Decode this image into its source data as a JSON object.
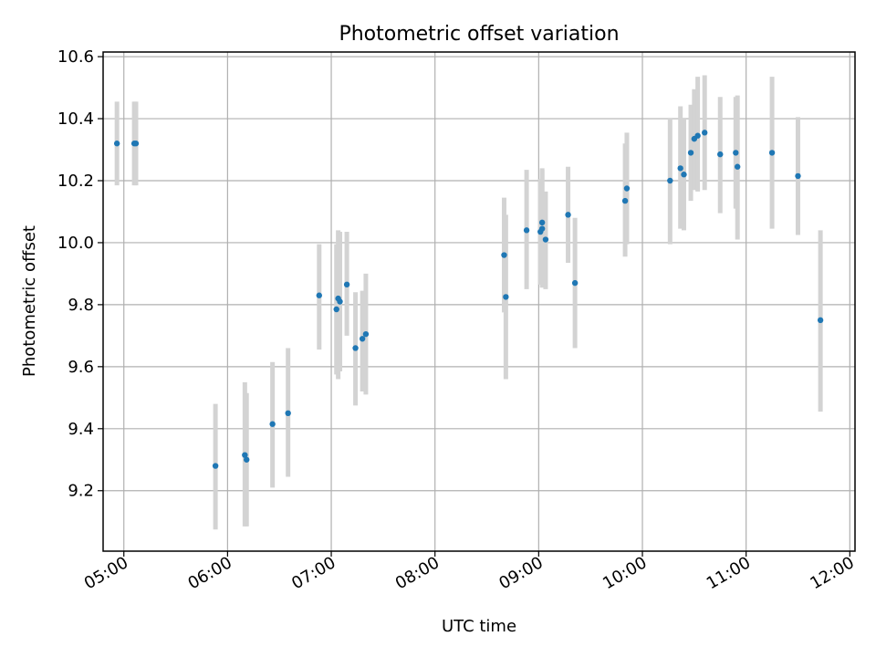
{
  "chart_data": {
    "type": "scatter",
    "title": "Photometric offset variation",
    "xlabel": "UTC time",
    "ylabel": "Photometric offset",
    "xlim": [
      "04:48",
      "12:03"
    ],
    "ylim": [
      9.005,
      10.615
    ],
    "x_ticks": [
      "05:00",
      "06:00",
      "07:00",
      "08:00",
      "09:00",
      "10:00",
      "11:00",
      "12:00"
    ],
    "y_ticks": [
      "9.2",
      "9.4",
      "9.6",
      "9.8",
      "10.0",
      "10.2",
      "10.4",
      "10.6"
    ],
    "grid": true,
    "colors": {
      "point": "#1f77b4",
      "errorbar": "#d3d3d3",
      "grid": "#b0b0b0"
    },
    "points": [
      {
        "x": "04:56",
        "y": 10.32,
        "lo": 10.185,
        "hi": 10.455
      },
      {
        "x": "05:06",
        "y": 10.32,
        "lo": 10.185,
        "hi": 10.455
      },
      {
        "x": "05:07",
        "y": 10.32,
        "lo": 10.185,
        "hi": 10.455
      },
      {
        "x": "05:53",
        "y": 9.28,
        "lo": 9.075,
        "hi": 9.48
      },
      {
        "x": "06:10",
        "y": 9.315,
        "lo": 9.085,
        "hi": 9.55
      },
      {
        "x": "06:11",
        "y": 9.3,
        "lo": 9.085,
        "hi": 9.515
      },
      {
        "x": "06:26",
        "y": 9.415,
        "lo": 9.21,
        "hi": 9.615
      },
      {
        "x": "06:35",
        "y": 9.45,
        "lo": 9.245,
        "hi": 9.66
      },
      {
        "x": "06:53",
        "y": 9.83,
        "lo": 9.655,
        "hi": 9.995
      },
      {
        "x": "07:03",
        "y": 9.785,
        "lo": 9.575,
        "hi": 9.995
      },
      {
        "x": "07:04",
        "y": 9.82,
        "lo": 9.56,
        "hi": 10.04
      },
      {
        "x": "07:05",
        "y": 9.81,
        "lo": 9.585,
        "hi": 10.035
      },
      {
        "x": "07:09",
        "y": 9.865,
        "lo": 9.7,
        "hi": 10.035
      },
      {
        "x": "07:14",
        "y": 9.66,
        "lo": 9.475,
        "hi": 9.84
      },
      {
        "x": "07:18",
        "y": 9.69,
        "lo": 9.52,
        "hi": 9.845
      },
      {
        "x": "07:20",
        "y": 9.705,
        "lo": 9.51,
        "hi": 9.9
      },
      {
        "x": "08:40",
        "y": 9.96,
        "lo": 9.775,
        "hi": 10.145
      },
      {
        "x": "08:41",
        "y": 9.825,
        "lo": 9.56,
        "hi": 10.09
      },
      {
        "x": "08:53",
        "y": 10.04,
        "lo": 9.85,
        "hi": 10.235
      },
      {
        "x": "09:01",
        "y": 10.035,
        "lo": 9.865,
        "hi": 10.205
      },
      {
        "x": "09:02",
        "y": 10.045,
        "lo": 9.855,
        "hi": 10.235
      },
      {
        "x": "09:02",
        "y": 10.065,
        "lo": 9.895,
        "hi": 10.24
      },
      {
        "x": "09:04",
        "y": 10.01,
        "lo": 9.85,
        "hi": 10.165
      },
      {
        "x": "09:17",
        "y": 10.09,
        "lo": 9.935,
        "hi": 10.245
      },
      {
        "x": "09:21",
        "y": 9.87,
        "lo": 9.66,
        "hi": 10.08
      },
      {
        "x": "09:50",
        "y": 10.135,
        "lo": 9.955,
        "hi": 10.32
      },
      {
        "x": "09:51",
        "y": 10.175,
        "lo": 9.995,
        "hi": 10.355
      },
      {
        "x": "10:16",
        "y": 10.2,
        "lo": 9.995,
        "hi": 10.4
      },
      {
        "x": "10:22",
        "y": 10.24,
        "lo": 10.045,
        "hi": 10.44
      },
      {
        "x": "10:24",
        "y": 10.22,
        "lo": 10.04,
        "hi": 10.4
      },
      {
        "x": "10:28",
        "y": 10.29,
        "lo": 10.135,
        "hi": 10.445
      },
      {
        "x": "10:30",
        "y": 10.335,
        "lo": 10.17,
        "hi": 10.495
      },
      {
        "x": "10:32",
        "y": 10.345,
        "lo": 10.165,
        "hi": 10.535
      },
      {
        "x": "10:36",
        "y": 10.355,
        "lo": 10.17,
        "hi": 10.54
      },
      {
        "x": "10:45",
        "y": 10.285,
        "lo": 10.095,
        "hi": 10.47
      },
      {
        "x": "10:54",
        "y": 10.29,
        "lo": 10.11,
        "hi": 10.47
      },
      {
        "x": "10:55",
        "y": 10.245,
        "lo": 10.01,
        "hi": 10.475
      },
      {
        "x": "11:15",
        "y": 10.29,
        "lo": 10.045,
        "hi": 10.535
      },
      {
        "x": "11:30",
        "y": 10.215,
        "lo": 10.025,
        "hi": 10.405
      },
      {
        "x": "11:43",
        "y": 9.75,
        "lo": 9.455,
        "hi": 10.04
      }
    ]
  }
}
